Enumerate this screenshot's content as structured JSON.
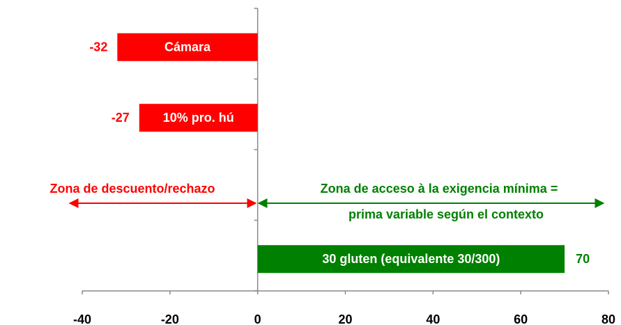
{
  "chart_data": {
    "type": "hbar",
    "categories": [
      "Cámara",
      "10% pro. hú",
      null,
      "30 gluten (equivalente 30/300)"
    ],
    "values": [
      -32,
      -27,
      null,
      70
    ],
    "colors": [
      "#ff0000",
      "#ff0000",
      null,
      "#008000"
    ],
    "xlim": [
      -40,
      80
    ],
    "xticks": [
      -40,
      -20,
      0,
      20,
      40,
      60,
      80
    ],
    "annotations": [
      {
        "lines": [
          "Zona de descuento/rechazo"
        ],
        "color": "#ff0000"
      },
      {
        "lines": [
          "Zona de acceso à la exigencia mínima =",
          "prima variable según el contexto"
        ],
        "color": "#008000"
      }
    ]
  }
}
